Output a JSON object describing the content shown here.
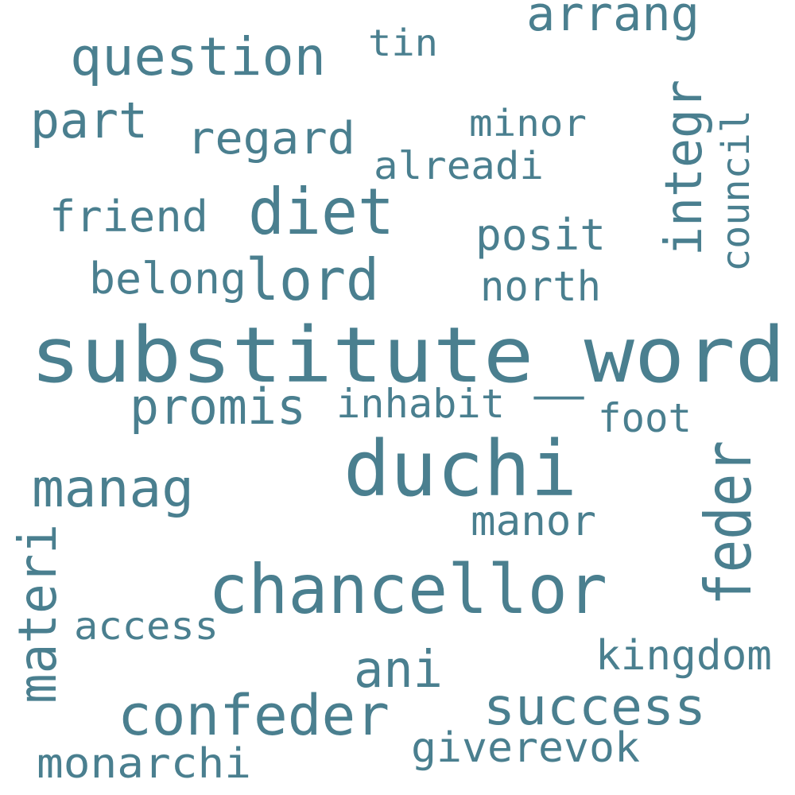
{
  "word_color": "#4a7f8f",
  "background": "#ffffff",
  "words": {
    "arrang": "arrang",
    "question": "question",
    "tin": "tin",
    "part": "part",
    "minor": "minor",
    "regard": "regard",
    "alreadi": "alreadi",
    "integr": "integr",
    "council": "council",
    "diet": "diet",
    "friend": "friend",
    "posit": "posit",
    "belong": "belong",
    "lord": "lord",
    "north": "north",
    "substitute_word": "substitute_word",
    "promis": "promis",
    "inhabit": "inhabit",
    "foot": "foot",
    "duchi": "duchi",
    "manag": "manag",
    "feder": "feder",
    "manor": "manor",
    "materi": "materi",
    "chancellor": "chancellor",
    "access": "access",
    "kingdom": "kingdom",
    "ani": "ani",
    "confeder": "confeder",
    "success": "success",
    "giverevok": "giverevok",
    "monarchi": "monarchi"
  }
}
